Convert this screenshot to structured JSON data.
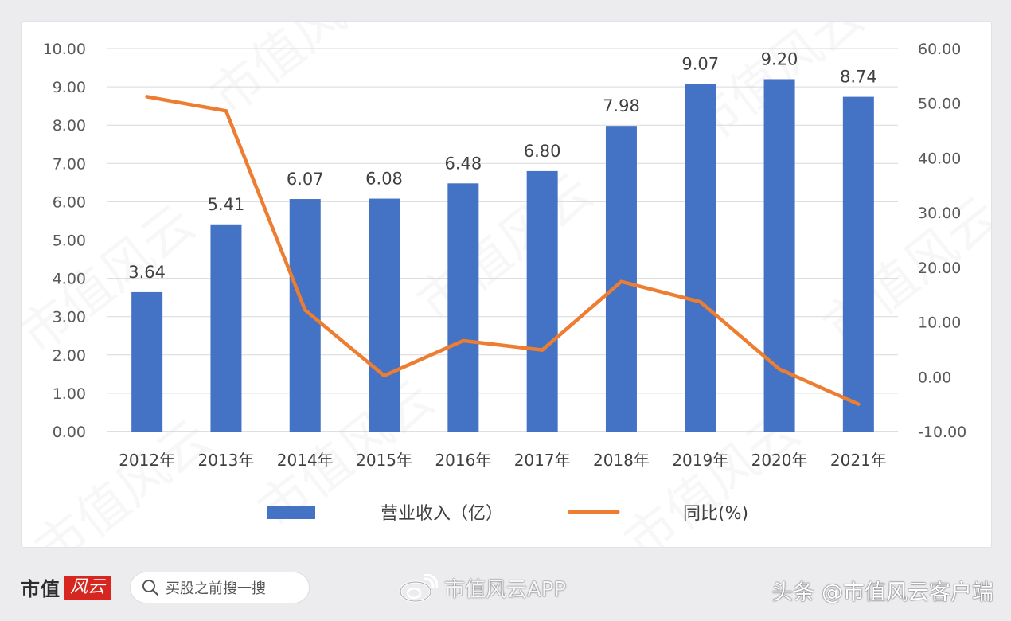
{
  "chart_data": {
    "type": "bar",
    "categories": [
      "2012年",
      "2013年",
      "2014年",
      "2015年",
      "2016年",
      "2017年",
      "2018年",
      "2019年",
      "2020年",
      "2021年"
    ],
    "series": [
      {
        "name": "营业收入（亿）",
        "type": "bar",
        "axis": "left",
        "values": [
          3.64,
          5.41,
          6.07,
          6.08,
          6.48,
          6.8,
          7.98,
          9.07,
          9.2,
          8.74
        ],
        "labels": [
          "3.64",
          "5.41",
          "6.07",
          "6.08",
          "6.48",
          "6.80",
          "7.98",
          "9.07",
          "9.20",
          "8.74"
        ],
        "color": "#4472c4"
      },
      {
        "name": "同比(%)",
        "type": "line",
        "axis": "right",
        "values": [
          51.2,
          48.6,
          12.2,
          0.2,
          6.6,
          4.9,
          17.4,
          13.7,
          1.4,
          -5.0
        ],
        "color": "#ed7d31"
      }
    ],
    "y_left": {
      "ylim": [
        0,
        10
      ],
      "ticks": [
        "0.00",
        "1.00",
        "2.00",
        "3.00",
        "4.00",
        "5.00",
        "6.00",
        "7.00",
        "8.00",
        "9.00",
        "10.00"
      ]
    },
    "y_right": {
      "ylim": [
        -10,
        60
      ],
      "ticks": [
        "-10.00",
        "0.00",
        "10.00",
        "20.00",
        "30.00",
        "40.00",
        "50.00",
        "60.00"
      ]
    },
    "grid": true,
    "legend_position": "bottom"
  },
  "watermark": {
    "text": "市值风云"
  },
  "footer": {
    "brand_name": "市值",
    "brand_logo_text": "风云",
    "search_placeholder": "买股之前搜一搜",
    "weibo_label": "市值风云APP",
    "source_label": "头条 @市值风云客户端"
  }
}
